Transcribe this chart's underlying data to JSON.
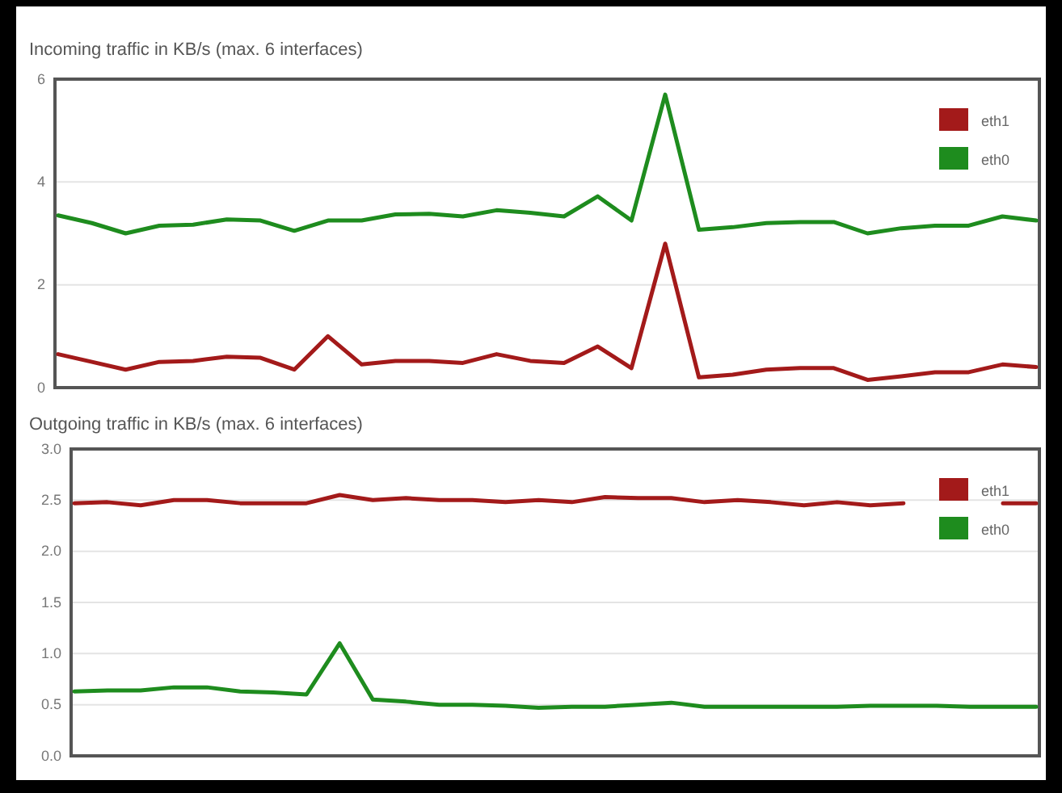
{
  "chart_data": [
    {
      "type": "line",
      "title": "Incoming traffic in KB/s (max. 6 interfaces)",
      "categories": [
        null,
        null,
        null,
        null,
        null,
        null,
        null,
        null,
        null,
        null,
        null,
        null,
        null,
        null,
        null,
        null,
        null,
        null,
        null,
        null,
        null,
        null,
        null,
        null,
        null,
        null,
        null,
        null,
        null,
        null
      ],
      "series": [
        {
          "name": "eth1",
          "color": "#a31a1a",
          "values": [
            0.65,
            0.5,
            0.35,
            0.5,
            0.52,
            0.6,
            0.58,
            0.35,
            1.0,
            0.45,
            0.52,
            0.52,
            0.48,
            0.65,
            0.52,
            0.48,
            0.8,
            0.38,
            2.8,
            0.2,
            0.25,
            0.35,
            0.38,
            0.38,
            0.15,
            0.22,
            0.3,
            0.3,
            0.45,
            0.4
          ]
        },
        {
          "name": "eth0",
          "color": "#1e8c1e",
          "values": [
            3.35,
            3.2,
            3.0,
            3.15,
            3.17,
            3.27,
            3.25,
            3.05,
            3.25,
            3.25,
            3.37,
            3.38,
            3.33,
            3.45,
            3.4,
            3.33,
            3.72,
            3.25,
            5.7,
            3.07,
            3.12,
            3.2,
            3.22,
            3.22,
            3.0,
            3.1,
            3.15,
            3.15,
            3.33,
            3.25
          ]
        }
      ],
      "ylim": [
        0,
        6
      ],
      "yticks": [
        0,
        2,
        4,
        6
      ],
      "grid": "y",
      "legend": "top right"
    },
    {
      "type": "line",
      "title": "Outgoing traffic in KB/s (max. 6 interfaces)",
      "categories": [
        null,
        null,
        null,
        null,
        null,
        null,
        null,
        null,
        null,
        null,
        null,
        null,
        null,
        null,
        null,
        null,
        null,
        null,
        null,
        null,
        null,
        null,
        null,
        null,
        null,
        null,
        null,
        null,
        null,
        null
      ],
      "series": [
        {
          "name": "eth1",
          "color": "#a31a1a",
          "values": [
            2.47,
            2.48,
            2.45,
            2.5,
            2.5,
            2.47,
            2.47,
            2.47,
            2.55,
            2.5,
            2.52,
            2.5,
            2.5,
            2.48,
            2.5,
            2.48,
            2.53,
            2.52,
            2.52,
            2.48,
            2.5,
            2.48,
            2.45,
            2.48,
            2.45,
            2.47,
            null,
            null,
            2.47,
            2.47
          ]
        },
        {
          "name": "eth0",
          "color": "#1e8c1e",
          "values": [
            0.63,
            0.64,
            0.64,
            0.67,
            0.67,
            0.63,
            0.62,
            0.6,
            1.1,
            0.55,
            0.53,
            0.5,
            0.5,
            0.49,
            0.47,
            0.48,
            0.48,
            0.5,
            0.52,
            0.48,
            0.48,
            0.48,
            0.48,
            0.48,
            0.49,
            0.49,
            0.49,
            0.48,
            0.48,
            0.48
          ]
        }
      ],
      "ylim": [
        0,
        3
      ],
      "yticks": [
        {
          "value": 0,
          "label": "0.0"
        },
        {
          "value": 0.5,
          "label": "0.5"
        },
        {
          "value": 1,
          "label": "1.0"
        },
        {
          "value": 1.5,
          "label": "1.5"
        },
        {
          "value": 2,
          "label": "2.0"
        },
        {
          "value": 2.5,
          "label": "2.5"
        },
        {
          "value": 3,
          "label": "3.0"
        }
      ],
      "grid": "y",
      "legend": "top right"
    }
  ]
}
